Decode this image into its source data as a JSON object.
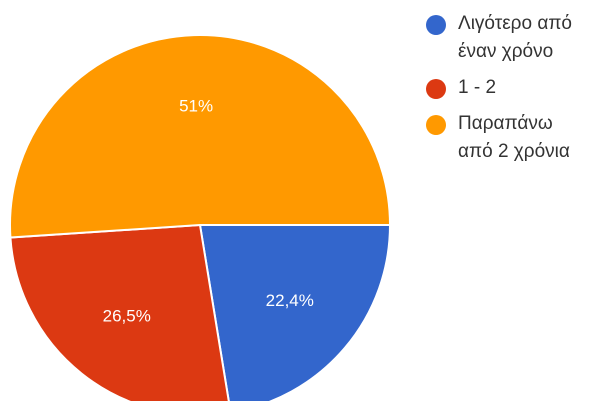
{
  "chart_data": {
    "type": "pie",
    "slices": [
      {
        "label": "Λιγότερο από\nέναν χρόνο",
        "value": 22.4,
        "value_label": "22,4%",
        "color": "#3366CC"
      },
      {
        "label": "1 - 2",
        "value": 26.5,
        "value_label": "26,5%",
        "color": "#DC3912"
      },
      {
        "label": "Παραπάνω\nαπό 2 χρόνια",
        "value": 51,
        "value_label": "51%",
        "color": "#FF9900"
      }
    ],
    "legend_position": "right"
  }
}
